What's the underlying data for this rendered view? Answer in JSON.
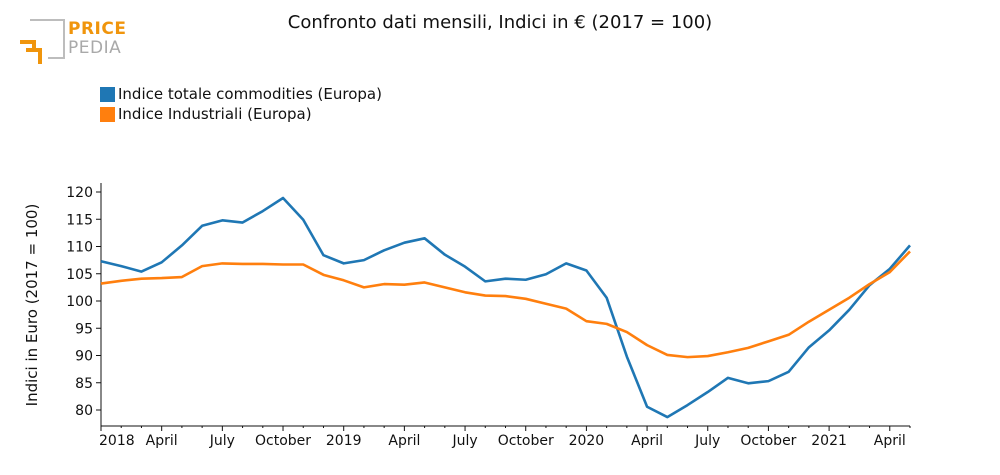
{
  "brand": {
    "part1": "PRICE",
    "part2": "PEDIA"
  },
  "colors": {
    "series1": "#1f77b4",
    "series2": "#ff7f0e",
    "logo_orange": "#f0950c",
    "logo_gray": "#a9a9a9"
  },
  "chart_data": {
    "type": "line",
    "title": "Confronto dati mensili, Indici in € (2017 = 100)",
    "xlabel": "",
    "ylabel": "Indici in Euro (2017 = 100)",
    "ylim": [
      77,
      121.5
    ],
    "yticks": [
      80,
      85,
      90,
      95,
      100,
      105,
      110,
      115,
      120
    ],
    "xticks": [
      {
        "label": "2018",
        "index": 0
      },
      {
        "label": "April",
        "index": 3
      },
      {
        "label": "July",
        "index": 6
      },
      {
        "label": "October",
        "index": 9
      },
      {
        "label": "2019",
        "index": 12
      },
      {
        "label": "April",
        "index": 15
      },
      {
        "label": "July",
        "index": 18
      },
      {
        "label": "October",
        "index": 21
      },
      {
        "label": "2020",
        "index": 24
      },
      {
        "label": "April",
        "index": 27
      },
      {
        "label": "July",
        "index": 30
      },
      {
        "label": "October",
        "index": 33
      },
      {
        "label": "2021",
        "index": 36
      },
      {
        "label": "April",
        "index": 39
      }
    ],
    "legend_position": "top-left",
    "grid": false,
    "categories": [
      "2018-01",
      "2018-02",
      "2018-03",
      "2018-04",
      "2018-05",
      "2018-06",
      "2018-07",
      "2018-08",
      "2018-09",
      "2018-10",
      "2018-11",
      "2018-12",
      "2019-01",
      "2019-02",
      "2019-03",
      "2019-04",
      "2019-05",
      "2019-06",
      "2019-07",
      "2019-08",
      "2019-09",
      "2019-10",
      "2019-11",
      "2019-12",
      "2020-01",
      "2020-02",
      "2020-03",
      "2020-04",
      "2020-05",
      "2020-06",
      "2020-07",
      "2020-08",
      "2020-09",
      "2020-10",
      "2020-11",
      "2020-12",
      "2021-01",
      "2021-02",
      "2021-03",
      "2021-04",
      "2021-05"
    ],
    "series": [
      {
        "name": "Indice totale commodities (Europa)",
        "color": "#1f77b4",
        "values": [
          107.3,
          106.4,
          105.4,
          107.1,
          110.2,
          113.8,
          114.8,
          114.4,
          116.5,
          118.9,
          114.9,
          108.4,
          106.9,
          107.5,
          109.3,
          110.7,
          111.5,
          108.5,
          106.3,
          103.6,
          104.1,
          103.9,
          104.9,
          106.9,
          105.6,
          100.6,
          89.8,
          80.6,
          78.7,
          80.9,
          83.3,
          85.9,
          84.9,
          85.3,
          87.0,
          91.5,
          94.6,
          98.4,
          102.9,
          105.9,
          110.2
        ]
      },
      {
        "name": "Indice Industriali (Europa)",
        "color": "#ff7f0e",
        "values": [
          103.2,
          103.7,
          104.1,
          104.2,
          104.4,
          106.4,
          106.9,
          106.8,
          106.8,
          106.7,
          106.7,
          104.8,
          103.8,
          102.5,
          103.1,
          103.0,
          103.4,
          102.5,
          101.6,
          101.0,
          100.9,
          100.4,
          99.5,
          98.6,
          96.3,
          95.8,
          94.3,
          91.9,
          90.1,
          89.7,
          89.9,
          90.6,
          91.4,
          92.6,
          93.8,
          96.2,
          98.4,
          100.6,
          103.1,
          105.3,
          109.1
        ]
      }
    ]
  }
}
